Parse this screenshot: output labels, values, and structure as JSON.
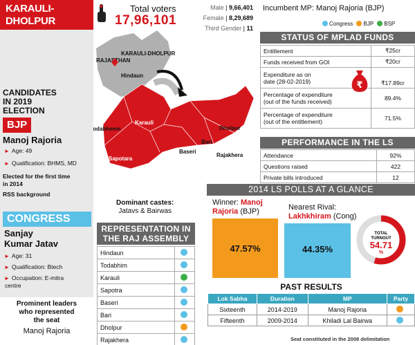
{
  "header": {
    "line1": "KARAULI-",
    "line2": "DHOLPUR"
  },
  "voters": {
    "total_label": "Total voters",
    "total_value": "17,96,101",
    "male_label": "Male",
    "male_value": "9,66,401",
    "female_label": "Female",
    "female_value": "8,29,689",
    "third_label": "Third Gender",
    "third_value": "11"
  },
  "map": {
    "state": "RAJASTHAN",
    "constituency": "KARAULI-DHOLPUR",
    "places": [
      "Hindaun",
      "Karauli",
      "Todabheem",
      "Sapotara",
      "Baseri",
      "Bari",
      "Dholpur",
      "Rajakhera"
    ]
  },
  "candidates": {
    "title_l1": "CANDIDATES",
    "title_l2": "IN 2019",
    "title_l3": "ELECTION",
    "bjp": {
      "party": "BJP",
      "name": "Manoj Rajoria",
      "age_label": "Age:",
      "age": "49",
      "qual_label": "Qualification:",
      "qual": "BHMS, MD",
      "note1": "Elected for the first time",
      "note2": "in 2014",
      "note3": "RSS background"
    },
    "congress": {
      "party": "CONGRESS",
      "name1": "Sanjay",
      "name2": "Kumar Jatav",
      "age_label": "Age:",
      "age": "31",
      "qual_label": "Qualification:",
      "qual": "Btech",
      "occ_label": "Occupation:",
      "occ": "E-mitra",
      "occ2": "centre"
    }
  },
  "prominent": {
    "l1": "Prominent leaders",
    "l2": "who represented",
    "l3": "the seat",
    "name": "Manoj Rajoria"
  },
  "mp": {
    "label": "Incumbent MP:",
    "name": "Manoj Rajoria (BJP)"
  },
  "legend": {
    "congress": "Congress",
    "bjp": "BJP",
    "bsp": "BSP"
  },
  "colors": {
    "red": "#d4161c",
    "congress": "#5bc0e6",
    "bjp": "#f39a1d",
    "bsp": "#3fae4a",
    "grey": "#666666"
  },
  "funds": {
    "title": "STATUS OF MPLAD FUNDS",
    "rows": [
      {
        "l1": "Entitlement",
        "l2": "",
        "v": "₹25cr"
      },
      {
        "l1": "Funds received from GOI",
        "l2": "",
        "v": "₹20cr"
      },
      {
        "l1": "Expenditure as on",
        "l2": "date (28-02-2019)",
        "v": "₹17.89cr"
      },
      {
        "l1": "Percentage of expenditure",
        "l2": "(out of the funds received)",
        "v": "89.4%"
      },
      {
        "l1": "Percentage of expenditure",
        "l2": "(out of the entitlement)",
        "v": "71.5%"
      }
    ]
  },
  "performance": {
    "title": "PERFORMANCE IN THE LS",
    "rows": [
      {
        "l": "Attendance",
        "v": "92%"
      },
      {
        "l": "Questions raised",
        "v": "422"
      },
      {
        "l": "Private bills introduced",
        "v": "12"
      }
    ]
  },
  "polls": {
    "title": "2014 LS POLLS AT A GLANCE",
    "winner_label": "Winner:",
    "winner_name1": "Manoj",
    "winner_name2": "Rajoria",
    "winner_party": "(BJP)",
    "winner_pct": "47.57%",
    "rival_label": "Nearest Rival:",
    "rival_name": "Lakhkhiram",
    "rival_party": "(Cong)",
    "rival_pct": "44.35%",
    "turnout_l1": "TOTAL",
    "turnout_l2": "TURNOUT",
    "turnout_value": "54.71",
    "turnout_unit": "%",
    "turnout_fraction": 0.5471
  },
  "castes": {
    "title": "Dominant castes:",
    "value": "Jatavs & Bairwas"
  },
  "raj": {
    "title_l1": "REPRESENTATION IN",
    "title_l2": "THE RAJ ASSEMBLY",
    "rows": [
      {
        "name": "Hindaun",
        "party": "congress"
      },
      {
        "name": "Todabhim",
        "party": "congress"
      },
      {
        "name": "Karauli",
        "party": "bsp"
      },
      {
        "name": "Sapotra",
        "party": "congress"
      },
      {
        "name": "Baseri",
        "party": "congress"
      },
      {
        "name": "Bari",
        "party": "congress"
      },
      {
        "name": "Dholpur",
        "party": "bjp"
      },
      {
        "name": "Rajakhera",
        "party": "congress"
      }
    ]
  },
  "past": {
    "title": "PAST RESULTS",
    "headers": [
      "Lok Sabha",
      "Duration",
      "MP",
      "Party"
    ],
    "rows": [
      {
        "ls": "Sixteenth",
        "dur": "2014-2019",
        "mp": "Manoj Rajoria",
        "party": "bjp"
      },
      {
        "ls": "Fifteenth",
        "dur": "2009-2014",
        "mp": "Khiladi Lal Bairwa",
        "party": "congress"
      }
    ],
    "note": "Seat constituted in the 2008 delimitation"
  }
}
